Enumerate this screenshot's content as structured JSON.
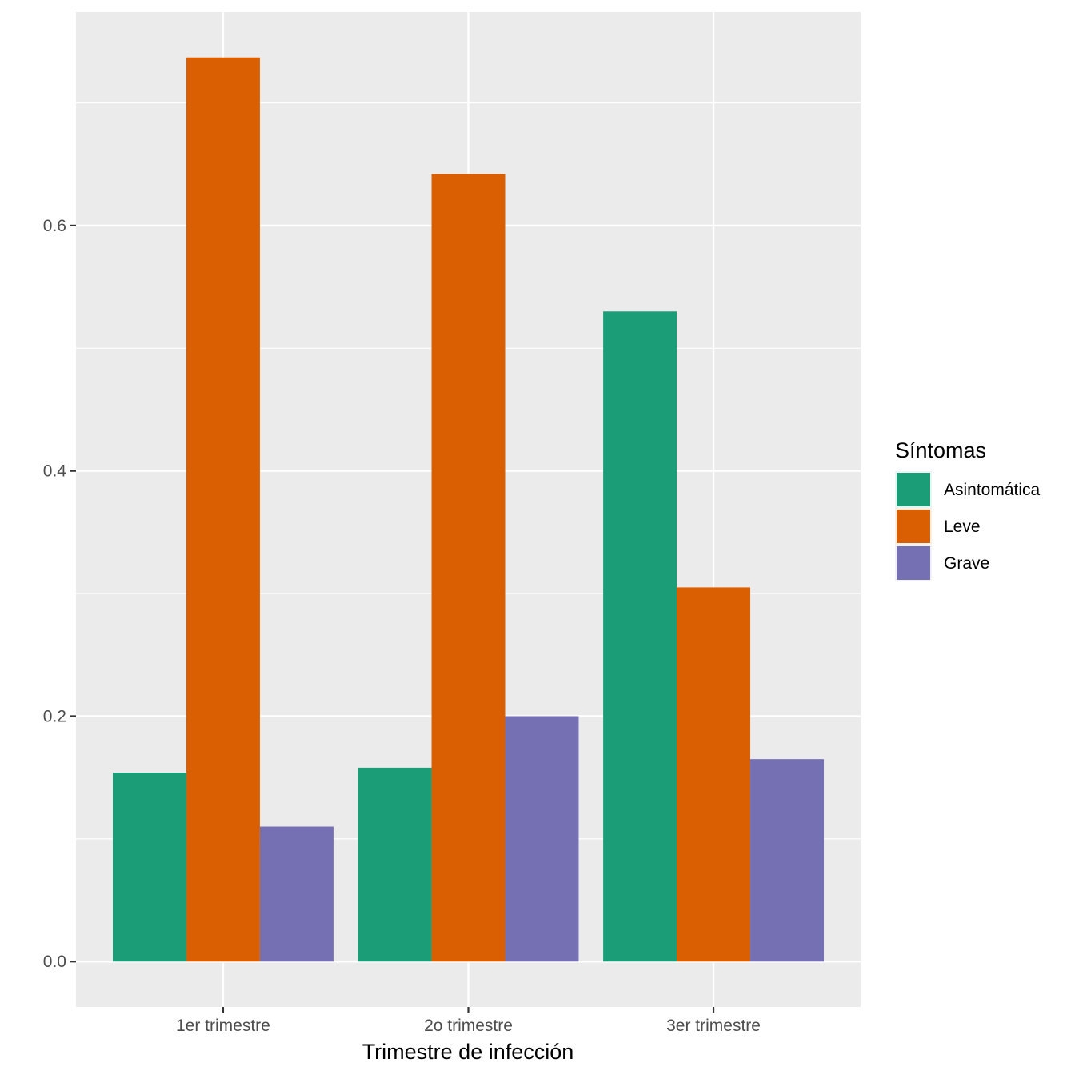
{
  "chart_data": {
    "type": "bar",
    "title": "",
    "xlabel": "Trimestre de infección",
    "ylabel": "",
    "categories": [
      "1er trimestre",
      "2o trimestre",
      "3er trimestre"
    ],
    "series": [
      {
        "name": "Asintomática",
        "color": "#1B9E77",
        "values": [
          0.154,
          0.158,
          0.53
        ]
      },
      {
        "name": "Leve",
        "color": "#D95F02",
        "values": [
          0.737,
          0.642,
          0.305
        ]
      },
      {
        "name": "Grave",
        "color": "#7570B3",
        "values": [
          0.11,
          0.2,
          0.165
        ]
      }
    ],
    "ylim": [
      -0.037,
      0.774
    ],
    "y_ticks": [
      0.0,
      0.2,
      0.4,
      0.6
    ],
    "y_tick_labels": [
      "0.0",
      "0.2",
      "0.4",
      "0.6"
    ],
    "grid": true,
    "legend": {
      "title": "Síntomas",
      "position": "right"
    }
  }
}
